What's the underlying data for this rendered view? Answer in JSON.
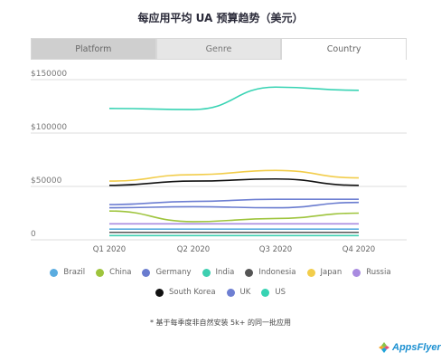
{
  "title": "每应用平均 UA 预算趋势（美元）",
  "tabs": [
    {
      "label": "Platform"
    },
    {
      "label": "Genre"
    },
    {
      "label": "Country"
    }
  ],
  "legend_rows": [
    [
      "Brazil",
      "China",
      "Germany",
      "India",
      "Indonesia",
      "Japan",
      "Russia"
    ],
    [
      "South Korea",
      "UK",
      "US"
    ]
  ],
  "footnote": "* 基于每季度非自然安装 5k+ 的同一批应用",
  "logo_text": "AppsFlyer",
  "colors": {
    "Brazil": "#5aace0",
    "China": "#9ec43c",
    "Germany": "#6a7ccf",
    "India": "#3ecfb0",
    "Indonesia": "#555555",
    "Japan": "#f2cd4b",
    "Russia": "#a98be0",
    "South Korea": "#111111",
    "UK": "#6e7fd2",
    "US": "#37d3b3"
  },
  "chart_data": {
    "type": "line",
    "categories": [
      "Q1 2020",
      "Q2 2020",
      "Q3 2020",
      "Q4 2020"
    ],
    "ylim": [
      0,
      150000
    ],
    "yticks": [
      "0",
      "$50000",
      "$100000",
      "$150000"
    ],
    "ytick_values": [
      0,
      50000,
      100000,
      150000
    ],
    "grid": true,
    "legend_position": "bottom",
    "series": [
      {
        "name": "US",
        "values": [
          123000,
          122000,
          143000,
          140000
        ]
      },
      {
        "name": "Japan",
        "values": [
          55000,
          61000,
          65000,
          58000
        ]
      },
      {
        "name": "South Korea",
        "values": [
          51000,
          55000,
          57000,
          51000
        ]
      },
      {
        "name": "UK",
        "values": [
          33000,
          36000,
          38000,
          38000
        ]
      },
      {
        "name": "Germany",
        "values": [
          30000,
          31000,
          30000,
          35000
        ]
      },
      {
        "name": "China",
        "values": [
          27000,
          17000,
          20000,
          25000
        ]
      },
      {
        "name": "Russia",
        "values": [
          15000,
          15000,
          15000,
          15000
        ]
      },
      {
        "name": "Brazil",
        "values": [
          10000,
          10000,
          10000,
          10000
        ]
      },
      {
        "name": "Indonesia",
        "values": [
          7000,
          7000,
          7000,
          7000
        ]
      },
      {
        "name": "India",
        "values": [
          4000,
          4000,
          4000,
          4000
        ]
      }
    ]
  }
}
